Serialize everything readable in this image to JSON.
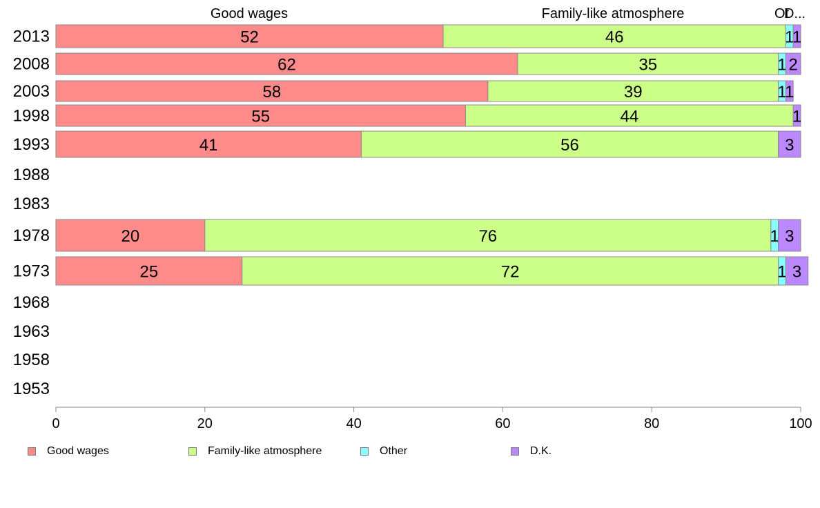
{
  "chart_data": {
    "type": "bar",
    "orientation": "horizontal",
    "stacked": true,
    "title": "",
    "xlabel": "",
    "ylabel": "",
    "xlim": [
      0,
      100
    ],
    "x_ticks": [
      "0",
      "20",
      "40",
      "60",
      "80",
      "100"
    ],
    "categories": [
      "2013",
      "2008",
      "2003",
      "1998",
      "1993",
      "1988",
      "1983",
      "1978",
      "1973",
      "1968",
      "1963",
      "1958",
      "1953"
    ],
    "series": [
      {
        "name": "Good wages",
        "color": "#ff8a8a",
        "values": [
          52,
          62,
          58,
          55,
          41,
          null,
          null,
          20,
          25,
          null,
          null,
          null,
          null
        ]
      },
      {
        "name": "Family-like atmosphere",
        "color": "#ccff88",
        "values": [
          46,
          35,
          39,
          44,
          56,
          null,
          null,
          76,
          72,
          null,
          null,
          null,
          null
        ]
      },
      {
        "name": "Other",
        "color": "#88ffff",
        "values": [
          1,
          1,
          1,
          0,
          0,
          null,
          null,
          1,
          1,
          null,
          null,
          null,
          null
        ]
      },
      {
        "name": "D.K.",
        "color": "#bb88ff",
        "values": [
          1,
          2,
          1,
          1,
          3,
          null,
          null,
          3,
          3,
          null,
          null,
          null,
          null
        ]
      }
    ],
    "top_labels": [
      "Good wages",
      "Family-like atmosphere",
      "Ot",
      "D..."
    ],
    "legend_position": "bottom",
    "grid": false
  }
}
